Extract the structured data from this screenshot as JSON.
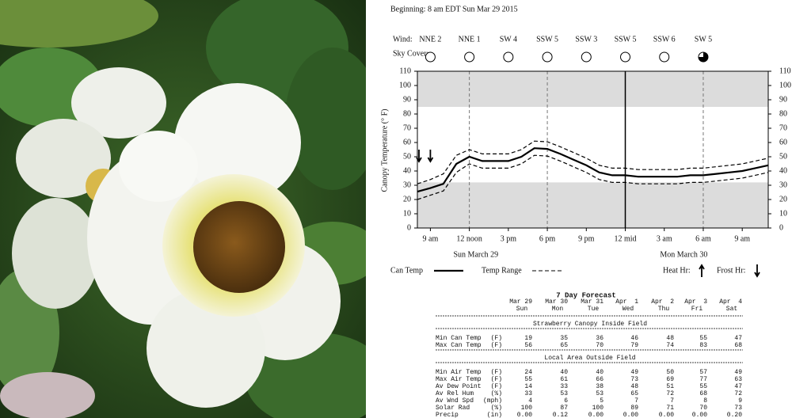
{
  "chart_data": {
    "type": "line",
    "subtitle": "Beginning: 8 am EDT Sun Mar 29 2015",
    "wind_label": "Wind:",
    "wind": [
      "NNE 2",
      "NNE 1",
      "SW 4",
      "SSW 5",
      "SSW 3",
      "SSW 5",
      "SSW 6",
      "SW 5"
    ],
    "sky_cover_label": "Sky Cover:",
    "sky_cover": [
      0,
      0,
      0,
      0,
      0,
      0,
      0,
      75
    ],
    "ylabel": "Canopy Temperature (° F)",
    "ylim": [
      0,
      110
    ],
    "yticks": [
      0,
      10,
      20,
      30,
      40,
      50,
      60,
      70,
      80,
      90,
      100,
      110
    ],
    "shaded_ranges": [
      [
        0,
        32
      ],
      [
        85,
        110
      ]
    ],
    "categories": [
      null,
      "9 am",
      null,
      null,
      "12 noon",
      null,
      null,
      "3 pm",
      null,
      null,
      "6 pm",
      null,
      null,
      "9 pm",
      null,
      null,
      "12 mid",
      null,
      null,
      "3 am",
      null,
      null,
      "6 am",
      null,
      null,
      "9 am",
      null,
      null
    ],
    "x_group_labels": [
      "Sun March 29",
      "Mon March 30"
    ],
    "frost_hours": [
      0,
      1
    ],
    "series": [
      {
        "name": "Can Temp",
        "color": "#000000",
        "values": [
          25.5,
          28,
          31,
          45,
          50,
          47,
          47,
          47,
          50,
          56,
          55.5,
          52,
          48,
          44,
          39,
          37,
          37,
          36,
          36,
          36,
          36,
          37,
          37,
          38,
          39,
          40,
          42,
          44
        ]
      },
      {
        "name": "Temp Range",
        "color": "#000000",
        "values": [
          31,
          34,
          38,
          51,
          55,
          52,
          52,
          52,
          55,
          61,
          60.5,
          57,
          53,
          49,
          44,
          42,
          42,
          41,
          41,
          41,
          41,
          42,
          42,
          43,
          44,
          45,
          47,
          49
        ],
        "low_values": [
          20,
          23,
          26,
          39,
          45,
          42,
          42,
          42,
          45,
          51,
          50.5,
          47,
          43,
          39,
          34,
          32,
          32,
          31,
          31,
          31,
          31,
          32,
          32,
          33,
          34,
          35,
          37,
          39
        ]
      }
    ],
    "heat_label": "Heat Hr:",
    "frost_label": "Frost Hr:"
  },
  "forecast": {
    "title": "7 Day Forecast",
    "dates": [
      "Mar 29",
      "Mar 30",
      "Mar 31",
      "Apr  1",
      "Apr  2",
      "Apr  3",
      "Apr  4"
    ],
    "days": [
      "Sun",
      "Mon",
      "Tue",
      "Wed",
      "Thu",
      "Fri",
      "Sat"
    ],
    "sections": [
      {
        "title": "Strawberry Canopy Inside Field",
        "rows": [
          {
            "label": "Min Can Temp",
            "unit": "(F)",
            "values": [
              "19",
              "35",
              "36",
              "46",
              "48",
              "55",
              "47"
            ]
          },
          {
            "label": "Max Can Temp",
            "unit": "(F)",
            "values": [
              "56",
              "65",
              "70",
              "79",
              "74",
              "83",
              "68"
            ]
          }
        ]
      },
      {
        "title": "Local Area Outside Field",
        "rows": [
          {
            "label": "Min Air Temp",
            "unit": "(F)",
            "values": [
              "24",
              "40",
              "40",
              "49",
              "50",
              "57",
              "49"
            ]
          },
          {
            "label": "Max Air Temp",
            "unit": "(F)",
            "values": [
              "55",
              "61",
              "66",
              "73",
              "69",
              "77",
              "63"
            ]
          },
          {
            "label": "Av Dew Point",
            "unit": "(F)",
            "values": [
              "14",
              "33",
              "38",
              "48",
              "51",
              "55",
              "47"
            ]
          },
          {
            "label": "Av Rel Hum",
            "unit": "(%)",
            "values": [
              "33",
              "53",
              "53",
              "65",
              "72",
              "68",
              "72"
            ]
          },
          {
            "label": "Av Wnd Spd",
            "unit": "(mph)",
            "values": [
              "4",
              "6",
              "5",
              "7",
              "7",
              "8",
              "9"
            ]
          },
          {
            "label": "Solar Rad",
            "unit": "(%)",
            "values": [
              "100",
              "87",
              "100",
              "89",
              "71",
              "70",
              "73"
            ]
          },
          {
            "label": "Precip",
            "unit": "(in)",
            "values": [
              "0.00",
              "0.12",
              "0.00",
              "0.00",
              "0.00",
              "0.00",
              "0.20"
            ]
          }
        ]
      }
    ]
  }
}
